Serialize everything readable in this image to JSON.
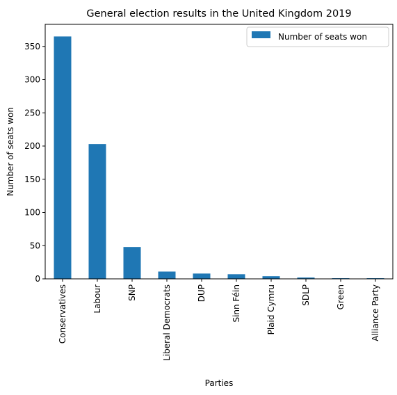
{
  "chart_data": {
    "type": "bar",
    "title": "General election results in the United Kingdom 2019",
    "xlabel": "Parties",
    "ylabel": "Number of seats won",
    "categories": [
      "Conservatives",
      "Labour",
      "SNP",
      "Liberal Democrats",
      "DUP",
      "Sinn Féin",
      "Plaid Cymru",
      "SDLP",
      "Green",
      "Alliance Party"
    ],
    "series": [
      {
        "name": "Number of seats won",
        "values": [
          365,
          203,
          48,
          11,
          8,
          7,
          4,
          2,
          1,
          1
        ],
        "color": "#1f77b4"
      }
    ],
    "ylim": [
      0,
      383.25
    ],
    "yticks": [
      0,
      50,
      100,
      150,
      200,
      250,
      300,
      350
    ],
    "grid": false,
    "legend": "top-right"
  }
}
